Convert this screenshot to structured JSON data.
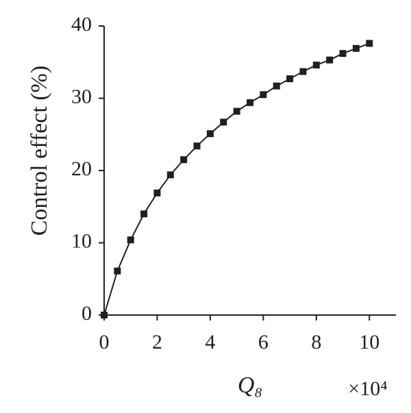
{
  "chart_data": {
    "type": "line",
    "x_label": "Q₈",
    "x_multiplier": "×10⁴",
    "y_label": "Control effect (%)",
    "x": [
      0,
      0.5,
      1,
      1.5,
      2,
      2.5,
      3,
      3.5,
      4,
      4.5,
      5,
      5.5,
      6,
      6.5,
      7,
      7.5,
      8,
      8.5,
      9,
      9.5,
      10
    ],
    "series": [
      {
        "name": "Control effect",
        "color": "#231f20",
        "values": [
          0,
          6.1,
          10.4,
          14.0,
          16.9,
          19.4,
          21.5,
          23.4,
          25.1,
          26.7,
          28.2,
          29.4,
          30.5,
          31.7,
          32.7,
          33.7,
          34.6,
          35.3,
          36.2,
          36.9,
          37.6
        ]
      }
    ],
    "xlim": [
      0,
      11
    ],
    "xticks": [
      0,
      2,
      4,
      6,
      8,
      10
    ],
    "ylim": [
      0,
      40
    ],
    "yticks": [
      0,
      10,
      20,
      30,
      40
    ]
  }
}
